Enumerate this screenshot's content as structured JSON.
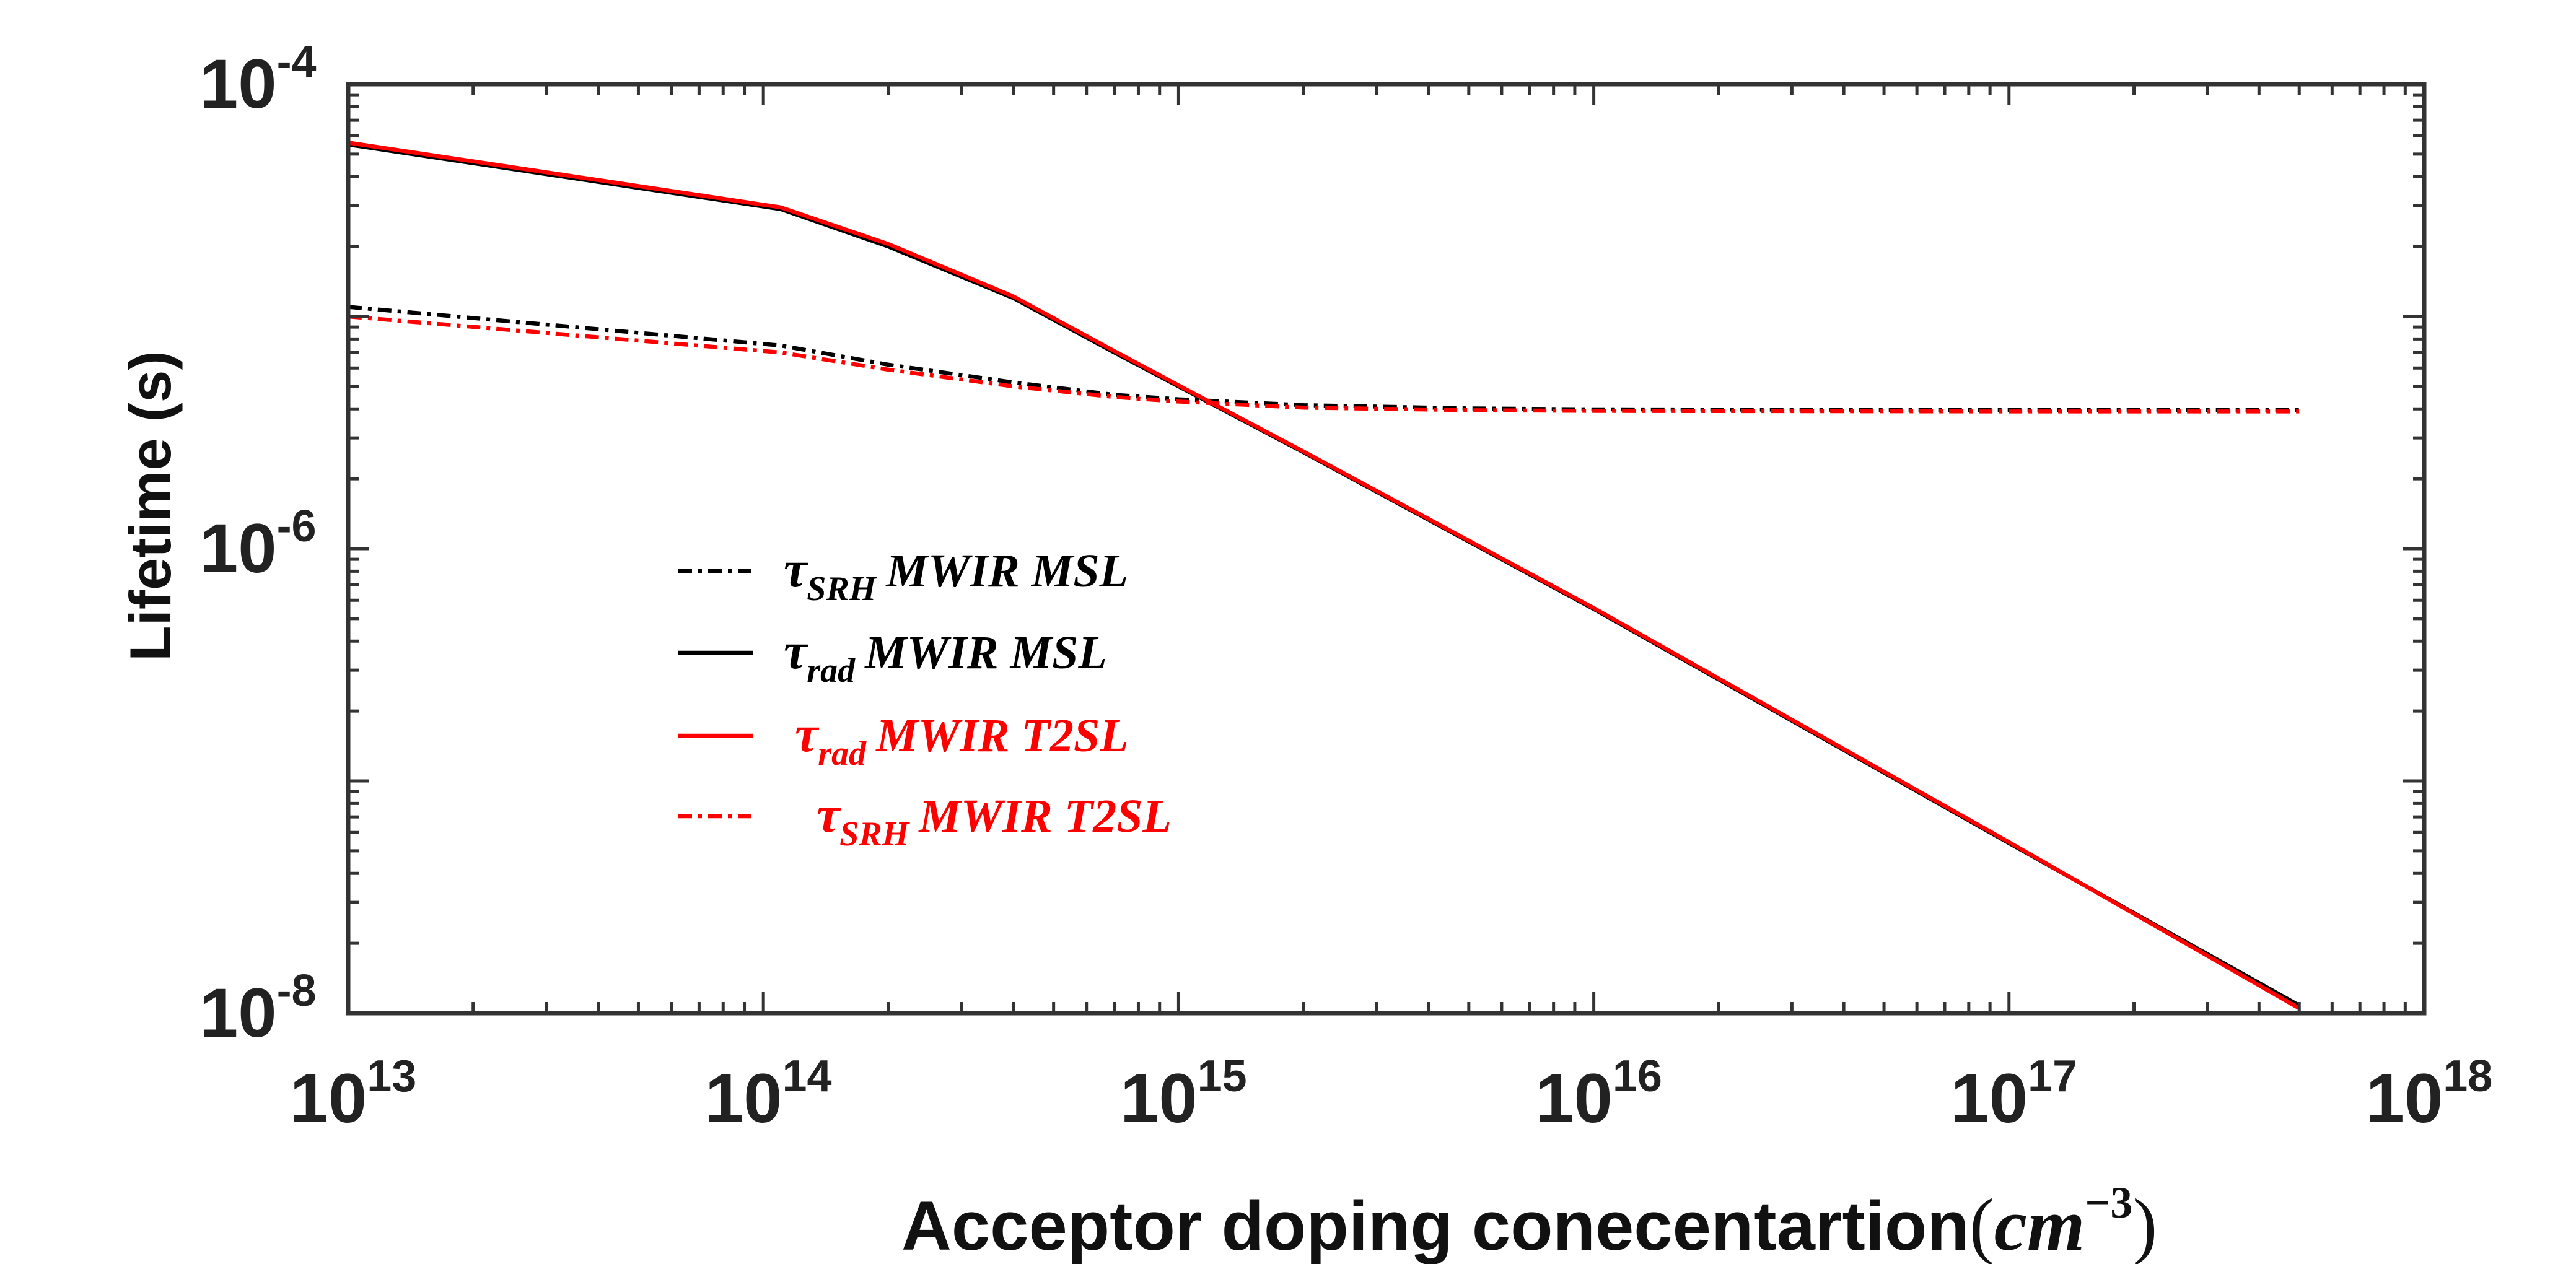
{
  "chart_data": {
    "type": "line",
    "title": "",
    "xlabel": "Acceptor doping conecentartion",
    "xlabel_unit": {
      "base": "cm",
      "exp": "−3"
    },
    "ylabel": "Lifetime (s)",
    "xscale": "log",
    "yscale": "log",
    "xlim": [
      10000000000000.0,
      1e+18
    ],
    "ylim": [
      1e-08,
      0.0001
    ],
    "x_ticks": [
      {
        "value": 10000000000000.0,
        "base": "10",
        "exp": "13"
      },
      {
        "value": 100000000000000.0,
        "base": "10",
        "exp": "14"
      },
      {
        "value": 1000000000000000.0,
        "base": "10",
        "exp": "15"
      },
      {
        "value": 1e+16,
        "base": "10",
        "exp": "16"
      },
      {
        "value": 1e+17,
        "base": "10",
        "exp": "17"
      },
      {
        "value": 1e+18,
        "base": "10",
        "exp": "18"
      }
    ],
    "y_ticks": [
      {
        "value": 1e-08,
        "base": "10",
        "exp": "-8"
      },
      {
        "value": 1e-06,
        "base": "10",
        "exp": "-6"
      },
      {
        "value": 0.0001,
        "base": "10",
        "exp": "-4"
      }
    ],
    "grid": false,
    "legend_position": "center-left",
    "series": [
      {
        "name": "τSRH MWIR MSL",
        "symbol": "τ",
        "sub": "SRH",
        "label": "MWIR MSL",
        "color": "#000000",
        "dash": "dashdot",
        "x": [
          10000000000000.0,
          110000000000000.0,
          200000000000000.0,
          400000000000000.0,
          700000000000000.0,
          1000000000000000.0,
          2000000000000000.0,
          5000000000000000.0,
          1e+16,
          1e+17,
          5e+17
        ],
        "y": [
          1.1e-05,
          7.5e-06,
          6.2e-06,
          5.2e-06,
          4.6e-06,
          4.4e-06,
          4.15e-06,
          4.02e-06,
          3.98e-06,
          3.96e-06,
          3.95e-06
        ]
      },
      {
        "name": "τrad MWIR MSL",
        "symbol": "τ",
        "sub": "rad",
        "label": "MWIR MSL",
        "color": "#000000",
        "dash": "solid",
        "x": [
          10000000000000.0,
          110000000000000.0,
          200000000000000.0,
          400000000000000.0,
          700000000000000.0,
          1000000000000000.0,
          2000000000000000.0,
          1e+16,
          1e+17,
          5e+17
        ],
        "y": [
          5.5e-05,
          2.9e-05,
          2e-05,
          1.2e-05,
          7e-06,
          5e-06,
          2.6e-06,
          5.5e-07,
          5.4e-08,
          1.08e-08
        ]
      },
      {
        "name": "τrad MWIR T2SL",
        "symbol": "τ",
        "sub": "rad",
        "label": "MWIR T2SL",
        "color": "#ff0000",
        "dash": "solid",
        "x": [
          10000000000000.0,
          110000000000000.0,
          200000000000000.0,
          400000000000000.0,
          700000000000000.0,
          1000000000000000.0,
          2000000000000000.0,
          1e+16,
          1e+17,
          5e+17
        ],
        "y": [
          5.6e-05,
          2.95e-05,
          2.05e-05,
          1.22e-05,
          7.1e-06,
          5.05e-06,
          2.62e-06,
          5.55e-07,
          5.45e-08,
          1.05e-08
        ]
      },
      {
        "name": "τSRH MWIR T2SL",
        "symbol": "τ",
        "sub": "SRH",
        "label": "MWIR T2SL",
        "color": "#ff0000",
        "dash": "dashdot",
        "x": [
          10000000000000.0,
          110000000000000.0,
          200000000000000.0,
          400000000000000.0,
          700000000000000.0,
          1000000000000000.0,
          2000000000000000.0,
          5000000000000000.0,
          1e+16,
          1e+17,
          5e+17
        ],
        "y": [
          1e-05,
          7e-06,
          5.9e-06,
          5e-06,
          4.5e-06,
          4.3e-06,
          4.05e-06,
          3.95e-06,
          3.92e-06,
          3.9e-06,
          3.9e-06
        ]
      }
    ]
  }
}
